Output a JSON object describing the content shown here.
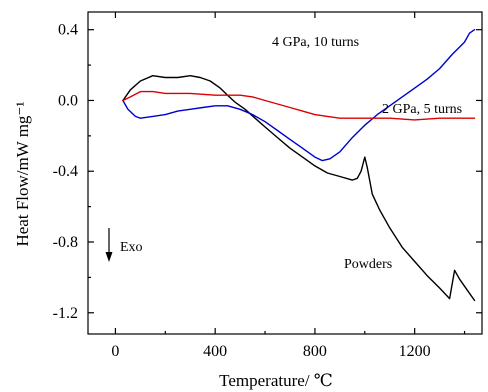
{
  "chart_data": {
    "type": "line",
    "title": "",
    "xlabel": "Temperature/ ℃",
    "ylabel": "Heat Flow/mW mg⁻¹",
    "xlim": [
      -110,
      1470
    ],
    "ylim": [
      -1.32,
      0.5
    ],
    "xticks": [
      0,
      400,
      800,
      1200
    ],
    "yticks": [
      0.4,
      0.0,
      -0.4,
      -0.8,
      -1.2
    ],
    "xtick_labels": [
      "0",
      "400",
      "800",
      "1200"
    ],
    "ytick_labels": [
      "0.4",
      "0.0",
      "-0.4",
      "-0.8",
      "-1.2"
    ],
    "grid": false,
    "legend": "none",
    "series": [
      {
        "label": "Powders",
        "color": "#000000",
        "x": [
          30,
          60,
          100,
          150,
          200,
          250,
          300,
          340,
          380,
          420,
          450,
          480,
          520,
          560,
          600,
          650,
          700,
          750,
          800,
          850,
          900,
          950,
          970,
          985,
          1000,
          1010,
          1030,
          1060,
          1100,
          1150,
          1200,
          1250,
          1300,
          1340,
          1360,
          1380,
          1400,
          1420,
          1440
        ],
        "y": [
          0.0,
          0.06,
          0.11,
          0.14,
          0.13,
          0.13,
          0.14,
          0.13,
          0.11,
          0.07,
          0.03,
          -0.01,
          -0.05,
          -0.1,
          -0.15,
          -0.21,
          -0.27,
          -0.32,
          -0.37,
          -0.41,
          -0.43,
          -0.45,
          -0.44,
          -0.4,
          -0.32,
          -0.38,
          -0.53,
          -0.62,
          -0.72,
          -0.83,
          -0.91,
          -0.99,
          -1.06,
          -1.12,
          -0.96,
          -1.01,
          -1.05,
          -1.09,
          -1.13
        ]
      },
      {
        "label": "4 GPa, 10 turns",
        "color": "#0000cc",
        "x": [
          30,
          50,
          80,
          100,
          150,
          200,
          250,
          300,
          350,
          400,
          450,
          500,
          550,
          600,
          650,
          700,
          750,
          800,
          830,
          860,
          900,
          950,
          1000,
          1050,
          1100,
          1150,
          1200,
          1250,
          1300,
          1350,
          1400,
          1420,
          1440
        ],
        "y": [
          0.0,
          -0.05,
          -0.09,
          -0.1,
          -0.09,
          -0.08,
          -0.06,
          -0.05,
          -0.04,
          -0.03,
          -0.03,
          -0.05,
          -0.08,
          -0.12,
          -0.17,
          -0.22,
          -0.27,
          -0.32,
          -0.34,
          -0.33,
          -0.29,
          -0.21,
          -0.14,
          -0.08,
          -0.03,
          0.02,
          0.07,
          0.12,
          0.18,
          0.26,
          0.33,
          0.38,
          0.4
        ]
      },
      {
        "label": "2 GPa, 5 turns",
        "color": "#dd0000",
        "x": [
          30,
          60,
          100,
          150,
          200,
          300,
          400,
          500,
          550,
          600,
          650,
          700,
          750,
          800,
          850,
          900,
          950,
          1000,
          1050,
          1100,
          1200,
          1300,
          1400,
          1440
        ],
        "y": [
          0.0,
          0.02,
          0.05,
          0.05,
          0.04,
          0.04,
          0.03,
          0.03,
          0.02,
          0.0,
          -0.02,
          -0.04,
          -0.06,
          -0.08,
          -0.09,
          -0.1,
          -0.1,
          -0.1,
          -0.1,
          -0.1,
          -0.11,
          -0.1,
          -0.1,
          -0.1
        ]
      }
    ],
    "annotations": [
      {
        "text": "4 GPa, 10 turns"
      },
      {
        "text": "2 GPa, 5 turns"
      },
      {
        "text": "Powders"
      },
      {
        "text": "Exo"
      }
    ]
  }
}
